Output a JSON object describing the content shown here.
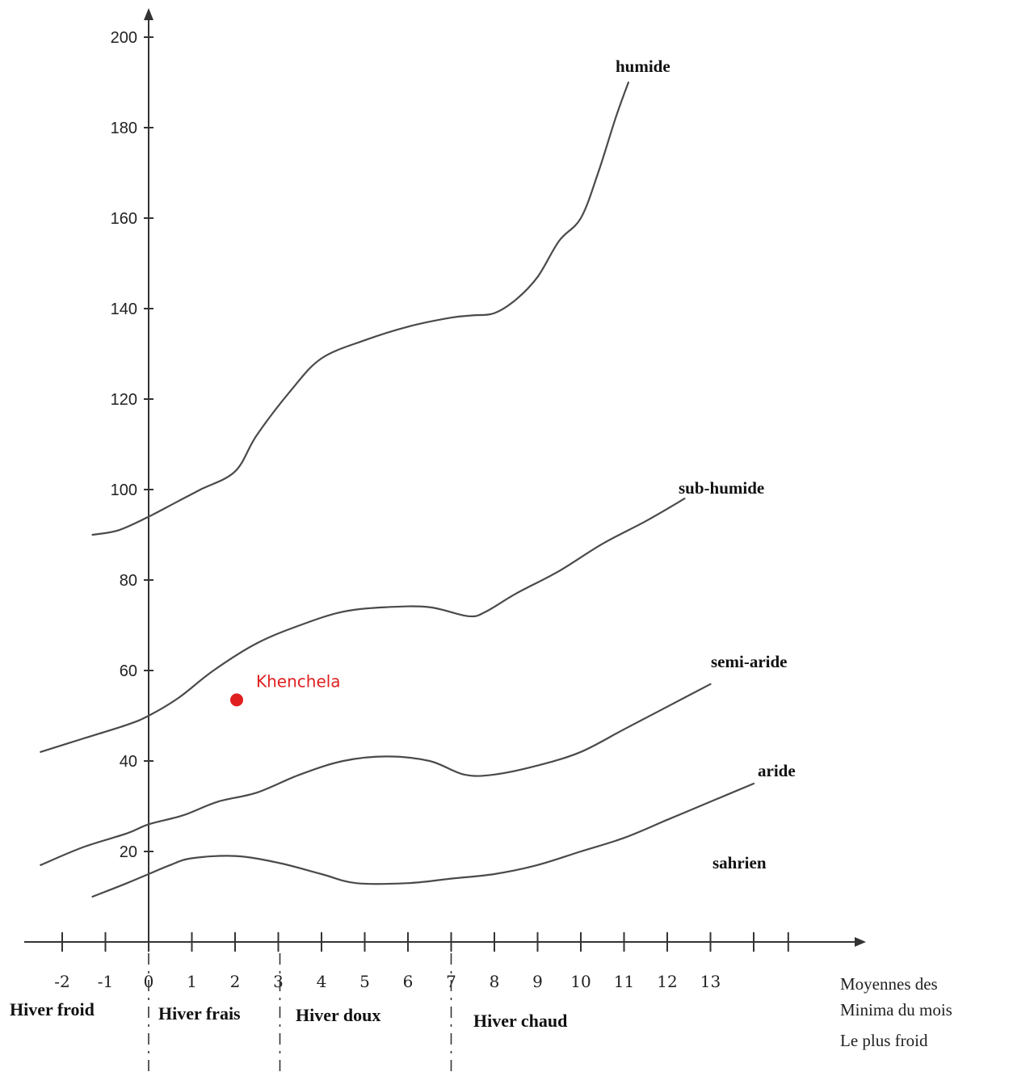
{
  "chart_data": {
    "type": "line",
    "title": "",
    "xlabel": "",
    "ylabel": "",
    "xlim": [
      -2.6,
      16.5
    ],
    "ylim": [
      0,
      200
    ],
    "y_ticks": [
      20,
      40,
      60,
      80,
      100,
      120,
      140,
      160,
      180,
      200
    ],
    "x_ticks": [
      -2,
      -1,
      0,
      1,
      2,
      3,
      4,
      5,
      6,
      7,
      8,
      9,
      10,
      11,
      12,
      13
    ],
    "x_axis_title_lines": [
      "Moyennes des",
      "Minima du mois",
      "Le plus froid"
    ],
    "series": [
      {
        "name": "humide",
        "x": [
          -1.3,
          -0.7,
          0,
          0.6,
          1.2,
          2.0,
          2.5,
          3.3,
          4.0,
          5.0,
          6.0,
          7.0,
          7.5,
          8.0,
          8.5,
          9.0,
          9.5,
          10.0,
          10.4,
          10.8,
          11.1
        ],
        "y": [
          90,
          91,
          94,
          97,
          100,
          104,
          112,
          122,
          129,
          133,
          136,
          138,
          138.5,
          139,
          142,
          147,
          155,
          160,
          170,
          182,
          190
        ]
      },
      {
        "name": "sub-humide",
        "x": [
          -2.5,
          -1.5,
          -0.5,
          0,
          0.7,
          1.5,
          2.5,
          3.5,
          4.5,
          5.5,
          6.5,
          7.4,
          7.8,
          8.5,
          9.5,
          10.5,
          11.5,
          12.4
        ],
        "y": [
          42,
          45,
          48,
          50,
          54,
          60,
          66,
          70,
          73,
          74,
          74,
          72,
          73,
          77,
          82,
          88,
          93,
          98
        ]
      },
      {
        "name": "semi-aride",
        "x": [
          -2.5,
          -1.5,
          -0.5,
          0,
          0.8,
          1.6,
          2.5,
          3.5,
          4.5,
          5.5,
          6.5,
          7.3,
          8.0,
          9.0,
          10.0,
          11.0,
          12.0,
          13.0
        ],
        "y": [
          17,
          21,
          24,
          26,
          28,
          31,
          33,
          37,
          40,
          41,
          40,
          37,
          37,
          39,
          42,
          47,
          52,
          57
        ]
      },
      {
        "name": "aride",
        "x": [
          -1.3,
          -0.5,
          0,
          0.5,
          1.0,
          2.0,
          3.0,
          4.0,
          4.8,
          6.0,
          7.0,
          8.0,
          9.0,
          10.0,
          11.0,
          12.0,
          13.0,
          14.0
        ],
        "y": [
          10,
          13,
          15,
          17,
          18.5,
          19,
          17.5,
          15,
          13,
          13,
          14,
          15,
          17,
          20,
          23,
          27,
          31,
          35
        ]
      }
    ],
    "curve_labels": [
      "humide",
      "sub-humide",
      "semi-aride",
      "aride",
      "sahrien"
    ],
    "zones": [
      {
        "label": "Hiver froid",
        "range": [
          -2.6,
          0
        ]
      },
      {
        "label": "Hiver frais",
        "range": [
          0,
          3
        ]
      },
      {
        "label": "Hiver doux",
        "range": [
          3,
          7
        ]
      },
      {
        "label": "Hiver chaud",
        "range": [
          7,
          13
        ]
      }
    ],
    "points": [
      {
        "label": "Khenchela",
        "x": 2.0,
        "y": 53.5,
        "color": "#e02020"
      }
    ],
    "grid": false
  }
}
